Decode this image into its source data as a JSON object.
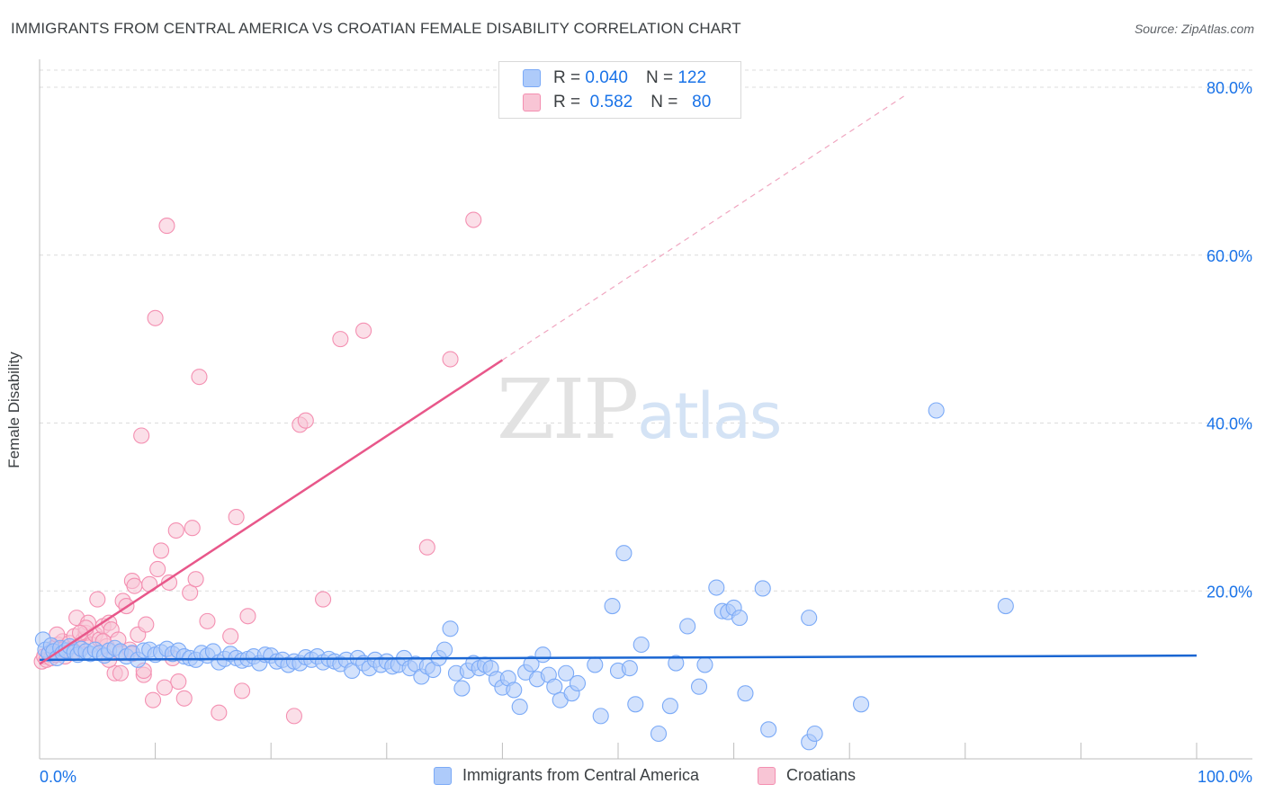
{
  "title": "IMMIGRANTS FROM CENTRAL AMERICA VS CROATIAN FEMALE DISABILITY CORRELATION CHART",
  "source": "Source: ZipAtlas.com",
  "watermark": {
    "zip": "ZIP",
    "atlas": "atlas"
  },
  "legend": {
    "rows": [
      {
        "r_label": "R =",
        "r_value": "0.040",
        "n_label": "N =",
        "n_value": "122",
        "color": "#aecbfa"
      },
      {
        "r_label": "R =",
        "r_value": "0.582",
        "n_label": "N =",
        "n_value": "80",
        "color": "#f8c5d5"
      }
    ]
  },
  "bottom_legend": [
    {
      "label": "Immigrants from Central America",
      "color": "#aecbfa"
    },
    {
      "label": "Croatians",
      "color": "#f8c5d5"
    }
  ],
  "chart_data": {
    "type": "scatter",
    "ylabel": "Female Disability",
    "xlabel": "",
    "xlim": [
      0,
      100
    ],
    "ylim": [
      0,
      80
    ],
    "x_tick_labels": [
      "0.0%",
      "100.0%"
    ],
    "y_ticks": [
      20,
      40,
      60,
      80
    ],
    "y_tick_labels": [
      "20.0%",
      "40.0%",
      "60.0%",
      "80.0%"
    ],
    "series": [
      {
        "name": "Immigrants from Central America",
        "color": "#7baaf7",
        "fill": "#aecbfa",
        "trend": {
          "x0": 0,
          "y0": 11.8,
          "x1": 100,
          "y1": 12.3,
          "color": "#1a66d2"
        },
        "points": [
          [
            0.3,
            14.2
          ],
          [
            0.5,
            13.0
          ],
          [
            0.8,
            12.5
          ],
          [
            1.0,
            13.5
          ],
          [
            1.2,
            12.8
          ],
          [
            1.5,
            12.0
          ],
          [
            1.8,
            13.2
          ],
          [
            2.0,
            12.6
          ],
          [
            2.3,
            12.9
          ],
          [
            2.6,
            13.4
          ],
          [
            3.0,
            12.7
          ],
          [
            3.3,
            12.4
          ],
          [
            3.6,
            13.1
          ],
          [
            4.0,
            12.8
          ],
          [
            4.4,
            12.5
          ],
          [
            4.8,
            13.0
          ],
          [
            5.2,
            12.6
          ],
          [
            5.6,
            12.3
          ],
          [
            6.0,
            12.9
          ],
          [
            6.5,
            13.2
          ],
          [
            7.0,
            12.8
          ],
          [
            7.5,
            12.2
          ],
          [
            8.0,
            12.6
          ],
          [
            8.5,
            11.8
          ],
          [
            9.0,
            12.9
          ],
          [
            9.5,
            13.0
          ],
          [
            10.0,
            12.4
          ],
          [
            10.5,
            12.7
          ],
          [
            11.0,
            13.1
          ],
          [
            11.5,
            12.5
          ],
          [
            12.0,
            12.9
          ],
          [
            12.5,
            12.2
          ],
          [
            13.0,
            12.0
          ],
          [
            13.5,
            11.8
          ],
          [
            14.0,
            12.6
          ],
          [
            14.5,
            12.3
          ],
          [
            15.0,
            12.8
          ],
          [
            15.5,
            11.5
          ],
          [
            16.0,
            11.9
          ],
          [
            16.5,
            12.5
          ],
          [
            17.0,
            12.0
          ],
          [
            17.5,
            11.7
          ],
          [
            18.0,
            11.9
          ],
          [
            18.5,
            12.2
          ],
          [
            19.0,
            11.4
          ],
          [
            19.5,
            12.4
          ],
          [
            20.0,
            12.3
          ],
          [
            20.5,
            11.6
          ],
          [
            21.0,
            11.8
          ],
          [
            21.5,
            11.2
          ],
          [
            22.0,
            11.6
          ],
          [
            22.5,
            11.4
          ],
          [
            23.0,
            12.1
          ],
          [
            23.5,
            11.8
          ],
          [
            24.0,
            12.2
          ],
          [
            24.5,
            11.5
          ],
          [
            25.0,
            11.9
          ],
          [
            25.5,
            11.6
          ],
          [
            26.0,
            11.3
          ],
          [
            26.5,
            11.8
          ],
          [
            27.0,
            10.5
          ],
          [
            27.5,
            12.0
          ],
          [
            28.0,
            11.4
          ],
          [
            28.5,
            10.8
          ],
          [
            29.0,
            11.8
          ],
          [
            29.5,
            11.2
          ],
          [
            30.0,
            11.6
          ],
          [
            30.5,
            11.0
          ],
          [
            31.0,
            11.2
          ],
          [
            31.5,
            12.0
          ],
          [
            32.0,
            10.8
          ],
          [
            32.5,
            11.3
          ],
          [
            33.0,
            9.8
          ],
          [
            33.5,
            11.0
          ],
          [
            34.0,
            10.6
          ],
          [
            34.5,
            12.0
          ],
          [
            35.0,
            13.0
          ],
          [
            35.5,
            15.5
          ],
          [
            36.0,
            10.2
          ],
          [
            36.5,
            8.4
          ],
          [
            37.0,
            10.5
          ],
          [
            37.5,
            11.4
          ],
          [
            38.0,
            10.8
          ],
          [
            38.5,
            11.2
          ],
          [
            39.0,
            10.8
          ],
          [
            39.5,
            9.5
          ],
          [
            40.0,
            8.5
          ],
          [
            40.5,
            9.6
          ],
          [
            41.0,
            8.2
          ],
          [
            41.5,
            6.2
          ],
          [
            42.0,
            10.3
          ],
          [
            42.5,
            11.3
          ],
          [
            43.0,
            9.5
          ],
          [
            43.5,
            12.4
          ],
          [
            44.0,
            10.0
          ],
          [
            44.5,
            8.6
          ],
          [
            45.0,
            7.0
          ],
          [
            45.5,
            10.2
          ],
          [
            46.0,
            7.8
          ],
          [
            46.5,
            9.0
          ],
          [
            48.0,
            11.2
          ],
          [
            48.5,
            5.1
          ],
          [
            49.5,
            18.2
          ],
          [
            50.0,
            10.5
          ],
          [
            50.5,
            24.5
          ],
          [
            51.0,
            10.8
          ],
          [
            51.5,
            6.5
          ],
          [
            52.0,
            13.6
          ],
          [
            53.5,
            3.0
          ],
          [
            54.5,
            6.3
          ],
          [
            55.0,
            11.4
          ],
          [
            56.0,
            15.8
          ],
          [
            57.0,
            8.6
          ],
          [
            57.5,
            11.2
          ],
          [
            58.5,
            20.4
          ],
          [
            59.0,
            17.6
          ],
          [
            59.5,
            17.5
          ],
          [
            60.0,
            18.0
          ],
          [
            60.5,
            16.8
          ],
          [
            61.0,
            7.8
          ],
          [
            62.5,
            20.3
          ],
          [
            63.0,
            3.5
          ],
          [
            66.5,
            16.8
          ],
          [
            66.5,
            2.0
          ],
          [
            67.0,
            3.0
          ],
          [
            71.0,
            6.5
          ],
          [
            77.5,
            41.5
          ],
          [
            83.5,
            18.2
          ]
        ]
      },
      {
        "name": "Croatians",
        "color": "#f48fb1",
        "fill": "#f8c5d5",
        "trend": {
          "x0": 0,
          "y0": 11.3,
          "x1": 40,
          "y1": 47.5,
          "dash_to_x": 75,
          "dash_to_y": 79.2,
          "color": "#e8578a"
        },
        "points": [
          [
            0.2,
            11.6
          ],
          [
            0.4,
            12.2
          ],
          [
            0.6,
            11.8
          ],
          [
            0.8,
            12.6
          ],
          [
            1.0,
            12.0
          ],
          [
            1.2,
            13.2
          ],
          [
            1.4,
            12.4
          ],
          [
            1.6,
            13.6
          ],
          [
            1.8,
            12.8
          ],
          [
            2.0,
            14.0
          ],
          [
            2.2,
            12.2
          ],
          [
            2.4,
            13.0
          ],
          [
            2.6,
            13.8
          ],
          [
            2.8,
            12.6
          ],
          [
            3.0,
            14.6
          ],
          [
            3.2,
            16.8
          ],
          [
            3.5,
            13.2
          ],
          [
            3.8,
            14.2
          ],
          [
            4.0,
            15.0
          ],
          [
            4.2,
            16.2
          ],
          [
            4.5,
            13.6
          ],
          [
            4.8,
            14.8
          ],
          [
            5.0,
            19.0
          ],
          [
            5.2,
            14.2
          ],
          [
            5.5,
            15.8
          ],
          [
            5.8,
            13.4
          ],
          [
            6.0,
            16.2
          ],
          [
            6.2,
            15.4
          ],
          [
            6.5,
            10.2
          ],
          [
            6.8,
            14.2
          ],
          [
            7.0,
            12.6
          ],
          [
            7.2,
            18.8
          ],
          [
            7.5,
            18.2
          ],
          [
            7.8,
            13.0
          ],
          [
            8.0,
            21.2
          ],
          [
            8.2,
            20.6
          ],
          [
            8.5,
            14.8
          ],
          [
            8.8,
            38.5
          ],
          [
            9.0,
            10.0
          ],
          [
            9.2,
            16.0
          ],
          [
            9.5,
            20.8
          ],
          [
            9.8,
            7.0
          ],
          [
            10.0,
            52.5
          ],
          [
            10.2,
            22.6
          ],
          [
            10.5,
            24.8
          ],
          [
            10.8,
            8.5
          ],
          [
            11.0,
            63.5
          ],
          [
            11.2,
            21.0
          ],
          [
            11.5,
            12.0
          ],
          [
            11.8,
            27.2
          ],
          [
            12.0,
            9.2
          ],
          [
            12.5,
            7.2
          ],
          [
            13.0,
            19.8
          ],
          [
            13.2,
            27.5
          ],
          [
            13.5,
            21.4
          ],
          [
            13.8,
            45.5
          ],
          [
            14.5,
            16.4
          ],
          [
            15.5,
            5.5
          ],
          [
            16.5,
            14.6
          ],
          [
            17.0,
            28.8
          ],
          [
            17.5,
            8.1
          ],
          [
            18.0,
            17.0
          ],
          [
            22.0,
            5.1
          ],
          [
            22.5,
            39.8
          ],
          [
            23.0,
            40.3
          ],
          [
            24.5,
            19.0
          ],
          [
            26.0,
            50.0
          ],
          [
            28.0,
            51.0
          ],
          [
            33.5,
            25.2
          ],
          [
            35.5,
            47.6
          ],
          [
            37.5,
            64.2
          ],
          [
            6.0,
            11.8
          ],
          [
            7.0,
            10.2
          ],
          [
            4.0,
            15.6
          ],
          [
            2.0,
            13.0
          ],
          [
            1.5,
            14.8
          ],
          [
            9.0,
            10.5
          ],
          [
            3.5,
            15.0
          ],
          [
            5.5,
            14.0
          ],
          [
            8.0,
            12.5
          ]
        ]
      }
    ]
  }
}
